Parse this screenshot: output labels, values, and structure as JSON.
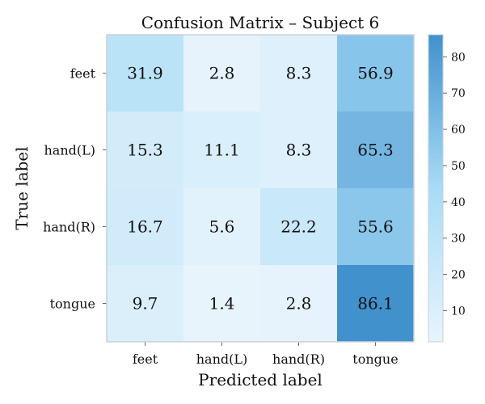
{
  "chart_data": {
    "type": "heatmap",
    "title": "Confusion Matrix – Subject 6",
    "xlabel": "Predicted label",
    "ylabel": "True label",
    "x_categories": [
      "feet",
      "hand(L)",
      "hand(R)",
      "tongue"
    ],
    "y_categories": [
      "feet",
      "hand(L)",
      "hand(R)",
      "tongue"
    ],
    "values": [
      [
        31.9,
        2.8,
        8.3,
        56.9
      ],
      [
        15.3,
        11.1,
        8.3,
        65.3
      ],
      [
        16.7,
        5.6,
        22.2,
        55.6
      ],
      [
        9.7,
        1.4,
        2.8,
        86.1
      ]
    ],
    "value_labels": [
      [
        "31.9",
        "2.8",
        "8.3",
        "56.9"
      ],
      [
        "15.3",
        "11.1",
        "8.3",
        "65.3"
      ],
      [
        "16.7",
        "5.6",
        "22.2",
        "55.6"
      ],
      [
        "9.7",
        "1.4",
        "2.8",
        "86.1"
      ]
    ],
    "colorbar": {
      "min": 1.4,
      "max": 86.1,
      "ticks": [
        10,
        20,
        30,
        40,
        50,
        60,
        70,
        80
      ],
      "tick_labels": [
        "10",
        "20",
        "30",
        "40",
        "50",
        "60",
        "70",
        "80"
      ],
      "colors": [
        "#e8f4fc",
        "#a8dcf7",
        "#4191cc"
      ]
    },
    "grid": false
  }
}
